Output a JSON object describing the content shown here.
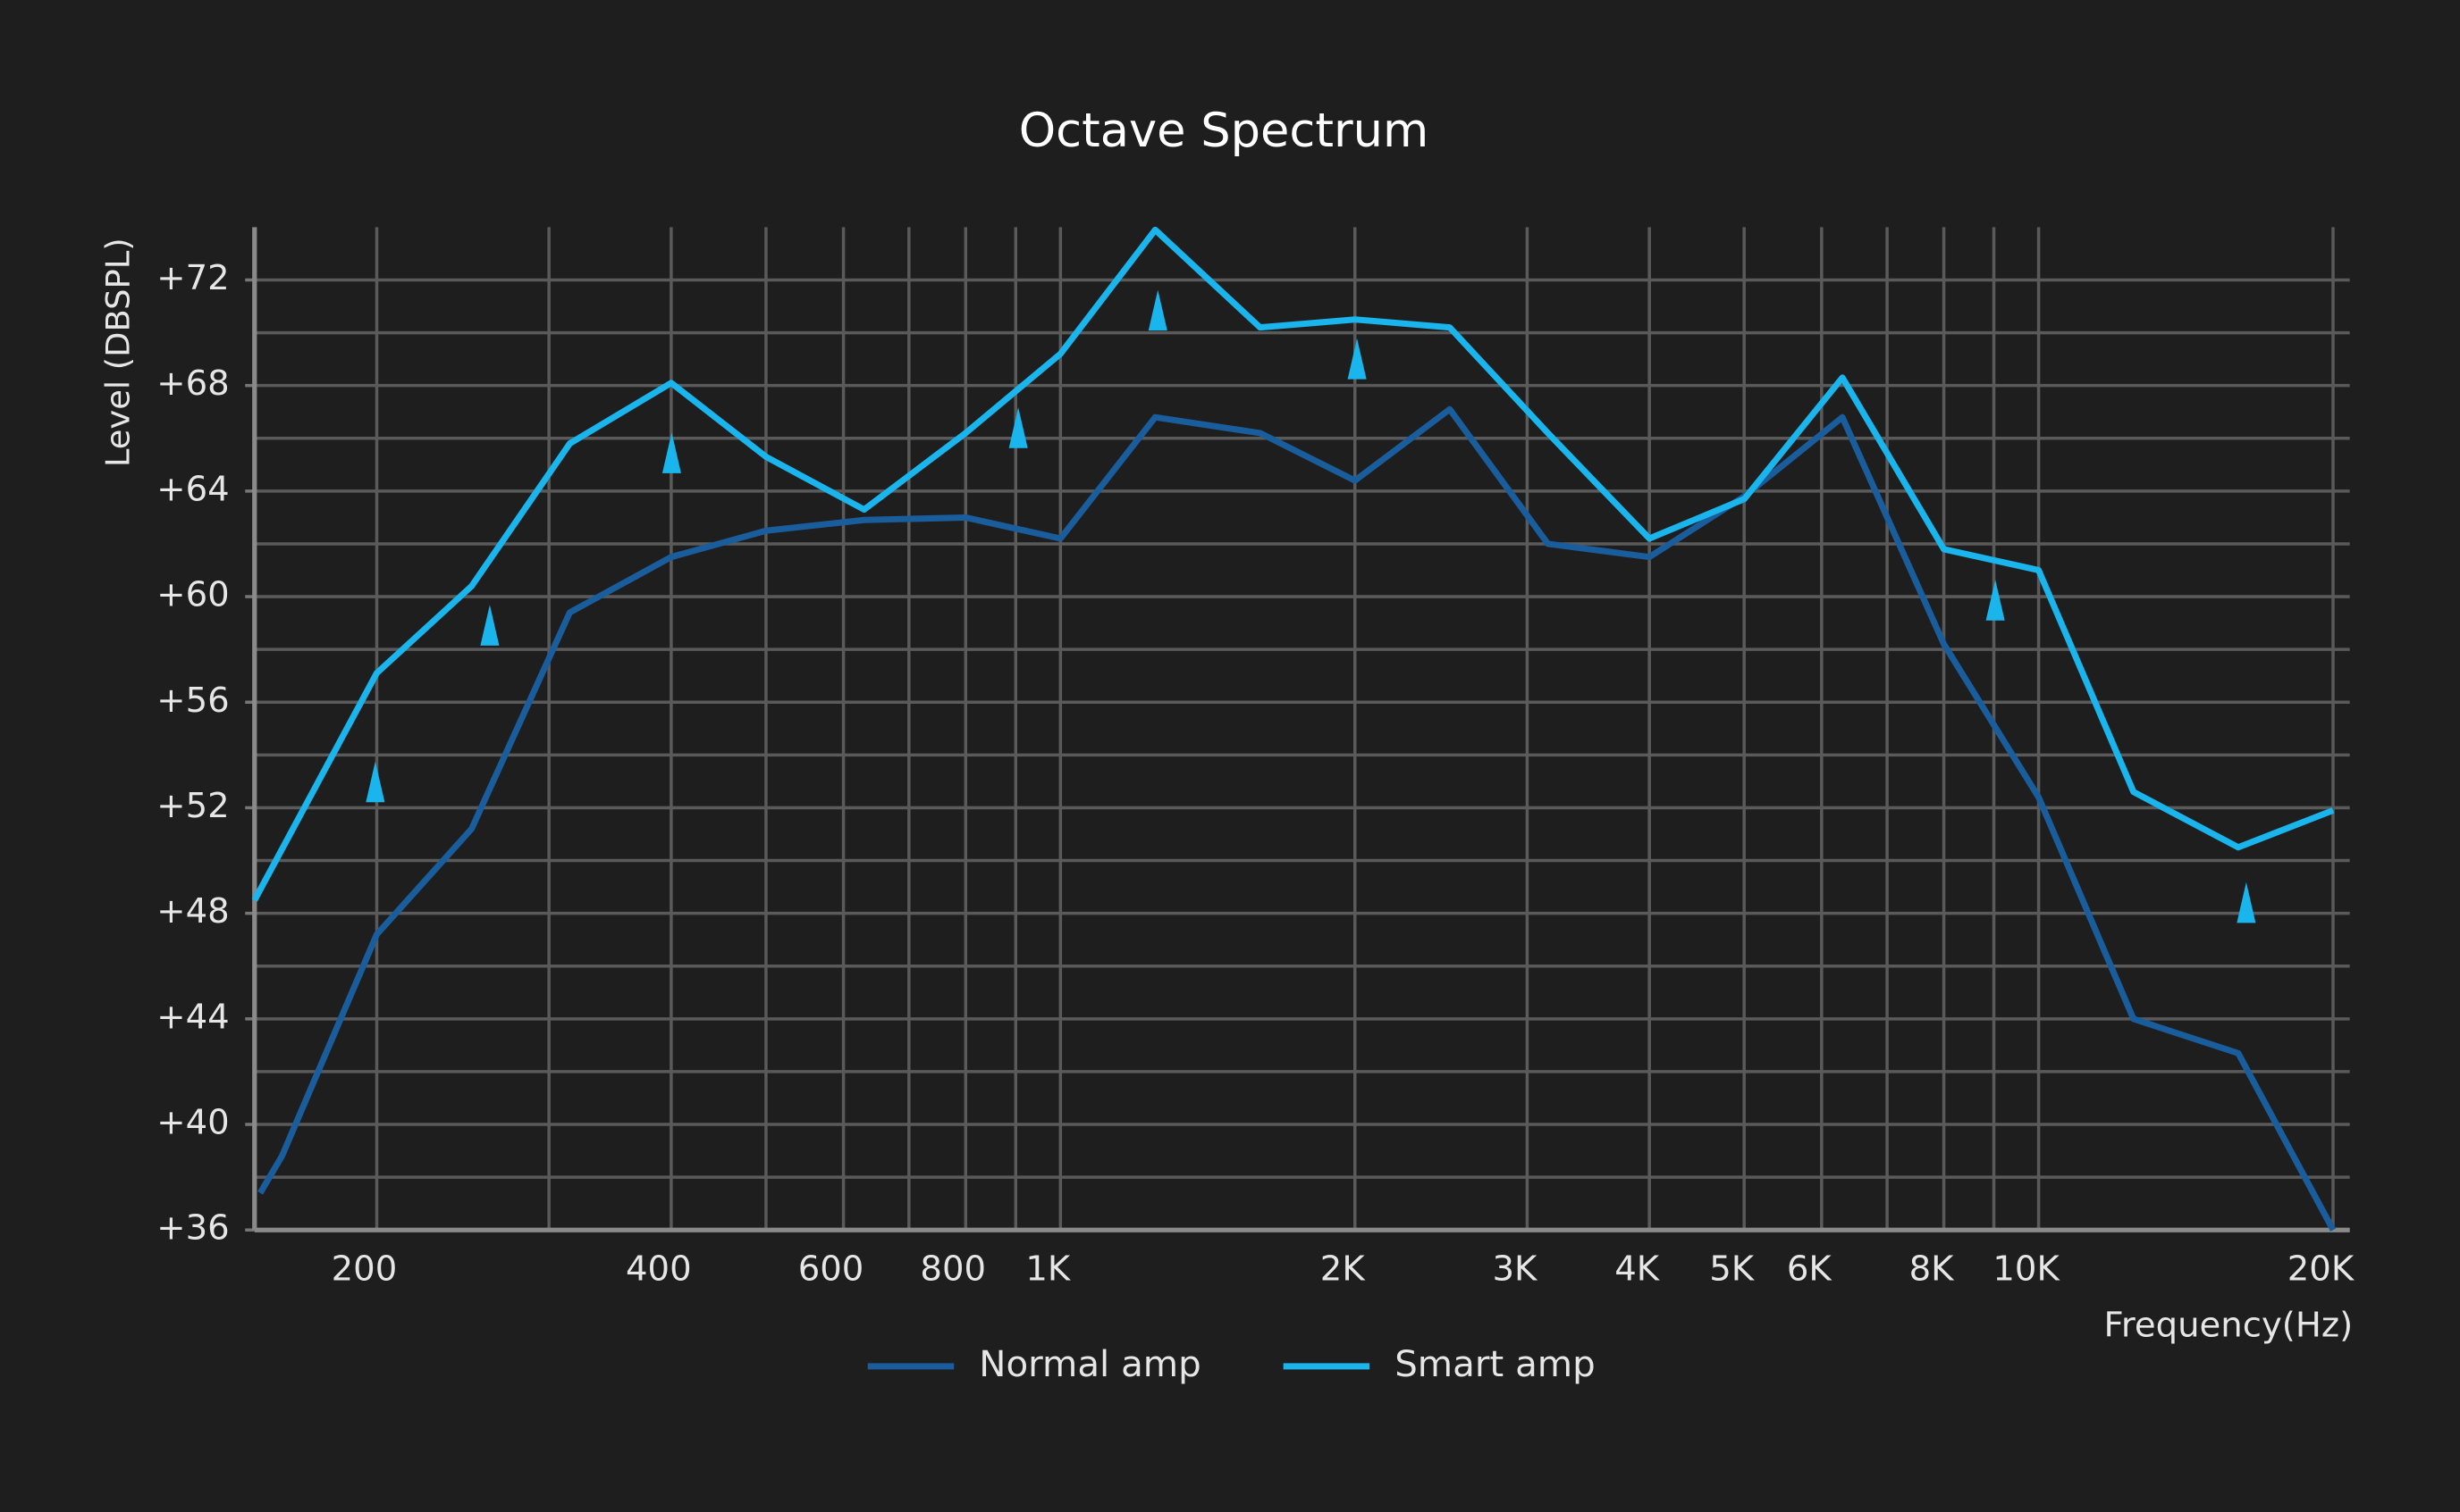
{
  "chart_data": {
    "type": "line",
    "title": "Octave Spectrum",
    "xlabel": "Frequency(Hz)",
    "ylabel": "Level (DBSPL)",
    "xscale": "log",
    "grid": true,
    "xlim": [
      150,
      20800
    ],
    "ylim": [
      36,
      74
    ],
    "xticks": [
      200,
      400,
      600,
      800,
      {
        "value": 1000,
        "label": "1K"
      },
      {
        "value": 2000,
        "label": "2K"
      },
      {
        "value": 3000,
        "label": "3K"
      },
      {
        "value": 4000,
        "label": "4K"
      },
      {
        "value": 5000,
        "label": "5K"
      },
      {
        "value": 6000,
        "label": "6K"
      },
      {
        "value": 8000,
        "label": "8K"
      },
      {
        "value": 10000,
        "label": "10K"
      },
      {
        "value": 20000,
        "label": "20K"
      }
    ],
    "xminor_grid": [
      300,
      500,
      700,
      900,
      7000,
      9000
    ],
    "yticks": [
      {
        "value": 36,
        "label": "+36"
      },
      {
        "value": 40,
        "label": "+40"
      },
      {
        "value": 44,
        "label": "+44"
      },
      {
        "value": 48,
        "label": "+48"
      },
      {
        "value": 52,
        "label": "+52"
      },
      {
        "value": 56,
        "label": "+56"
      },
      {
        "value": 60,
        "label": "+60"
      },
      {
        "value": 64,
        "label": "+64"
      },
      {
        "value": 68,
        "label": "+68"
      },
      {
        "value": 72,
        "label": "+72"
      }
    ],
    "yminor_grid": [
      38,
      42,
      46,
      50,
      54,
      58,
      62,
      66,
      70
    ],
    "series": [
      {
        "name": "Normal amp",
        "color": "#1a5d9c",
        "x": [
          152,
          160,
          200,
          250,
          315,
          400,
          500,
          630,
          800,
          1000,
          1250,
          1600,
          2000,
          2500,
          3150,
          4000,
          5000,
          6300,
          8000,
          10000,
          12500,
          16000,
          20000
        ],
        "values": [
          37.4,
          38.8,
          47.2,
          51.2,
          59.4,
          61.5,
          62.5,
          62.9,
          63.0,
          62.2,
          66.8,
          66.2,
          64.4,
          67.1,
          62.0,
          61.5,
          63.8,
          66.8,
          58.2,
          52.4,
          44.0,
          42.7,
          36.0
        ]
      },
      {
        "name": "Smart amp",
        "color": "#19b5ec",
        "x": [
          150,
          200,
          250,
          315,
          400,
          500,
          630,
          800,
          1000,
          1250,
          1600,
          2000,
          2500,
          3150,
          4000,
          5000,
          6300,
          8000,
          10000,
          12500,
          16000,
          20000
        ],
        "values": [
          48.5,
          57.1,
          60.4,
          65.8,
          68.1,
          65.3,
          63.3,
          66.2,
          69.2,
          73.9,
          70.2,
          70.5,
          70.2,
          66.2,
          62.2,
          63.7,
          68.3,
          61.8,
          61.0,
          52.6,
          50.5,
          51.9
        ]
      }
    ]
  }
}
